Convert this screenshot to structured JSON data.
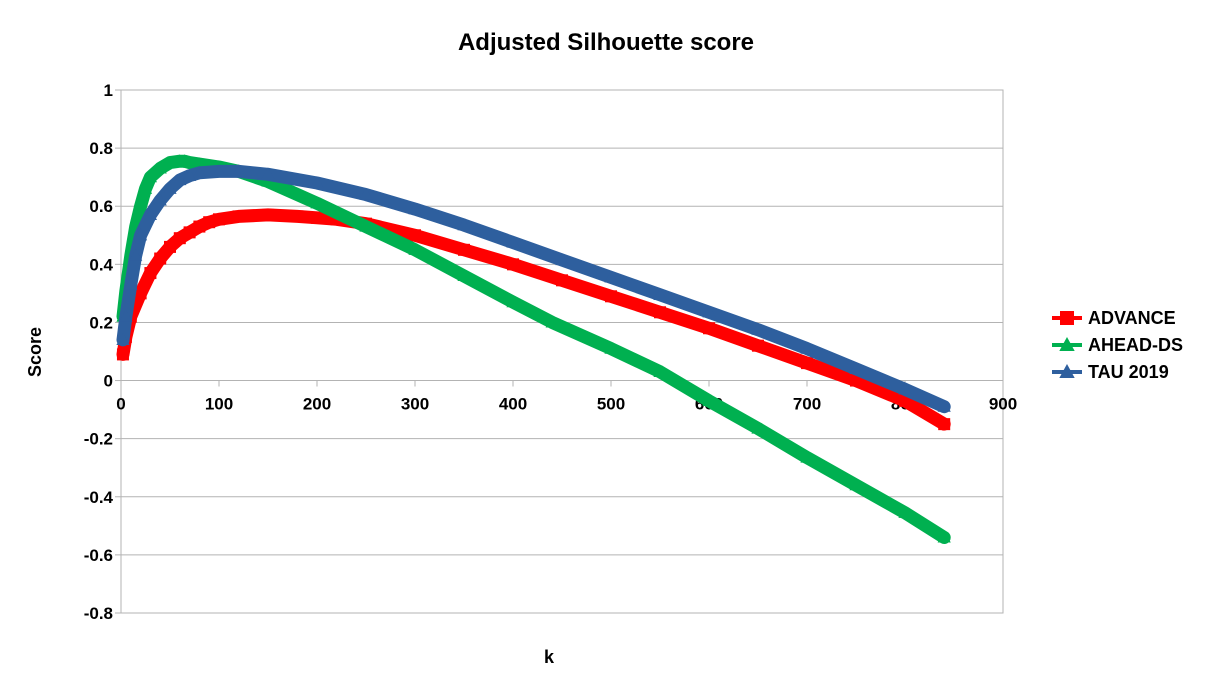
{
  "chart_data": {
    "type": "line",
    "title": "Adjusted Silhouette score",
    "xlabel": "k",
    "ylabel": "Score",
    "xlim": [
      0,
      900
    ],
    "ylim": [
      -0.8,
      1
    ],
    "xticks": [
      0,
      100,
      200,
      300,
      400,
      500,
      600,
      700,
      800,
      900
    ],
    "yticks": [
      -0.8,
      -0.6,
      -0.4,
      -0.2,
      0,
      0.2,
      0.4,
      0.6,
      0.8,
      1
    ],
    "grid": true,
    "legend_position": "right",
    "series": [
      {
        "name": "ADVANCE",
        "color": "#ff0000",
        "marker": "square",
        "x": [
          2,
          5,
          10,
          20,
          30,
          40,
          50,
          60,
          70,
          80,
          90,
          100,
          120,
          150,
          180,
          200,
          220,
          250,
          300,
          350,
          400,
          450,
          500,
          550,
          600,
          650,
          700,
          750,
          800,
          840
        ],
        "y": [
          0.09,
          0.15,
          0.22,
          0.3,
          0.37,
          0.42,
          0.46,
          0.49,
          0.51,
          0.53,
          0.545,
          0.555,
          0.565,
          0.57,
          0.565,
          0.56,
          0.555,
          0.54,
          0.5,
          0.45,
          0.4,
          0.345,
          0.29,
          0.235,
          0.18,
          0.12,
          0.06,
          0.0,
          -0.07,
          -0.15
        ]
      },
      {
        "name": "AHEAD-DS",
        "color": "#00b050",
        "marker": "triangle",
        "x": [
          2,
          5,
          10,
          15,
          20,
          25,
          30,
          40,
          50,
          60,
          65,
          70,
          80,
          100,
          120,
          150,
          200,
          250,
          300,
          350,
          400,
          440,
          500,
          550,
          600,
          650,
          700,
          750,
          800,
          840
        ],
        "y": [
          0.22,
          0.31,
          0.43,
          0.53,
          0.6,
          0.66,
          0.7,
          0.73,
          0.75,
          0.755,
          0.755,
          0.75,
          0.745,
          0.735,
          0.72,
          0.685,
          0.61,
          0.53,
          0.45,
          0.36,
          0.27,
          0.2,
          0.11,
          0.03,
          -0.07,
          -0.165,
          -0.265,
          -0.36,
          -0.455,
          -0.54
        ]
      },
      {
        "name": "TAU 2019",
        "color": "#2e5f9e",
        "marker": "triangle",
        "x": [
          2,
          5,
          10,
          15,
          20,
          30,
          40,
          50,
          60,
          70,
          80,
          100,
          120,
          150,
          200,
          250,
          300,
          350,
          400,
          450,
          500,
          550,
          600,
          650,
          700,
          750,
          800,
          840
        ],
        "y": [
          0.14,
          0.22,
          0.33,
          0.43,
          0.5,
          0.57,
          0.62,
          0.66,
          0.69,
          0.705,
          0.715,
          0.72,
          0.72,
          0.71,
          0.68,
          0.64,
          0.59,
          0.535,
          0.475,
          0.415,
          0.355,
          0.295,
          0.235,
          0.175,
          0.11,
          0.04,
          -0.03,
          -0.09
        ]
      }
    ]
  }
}
